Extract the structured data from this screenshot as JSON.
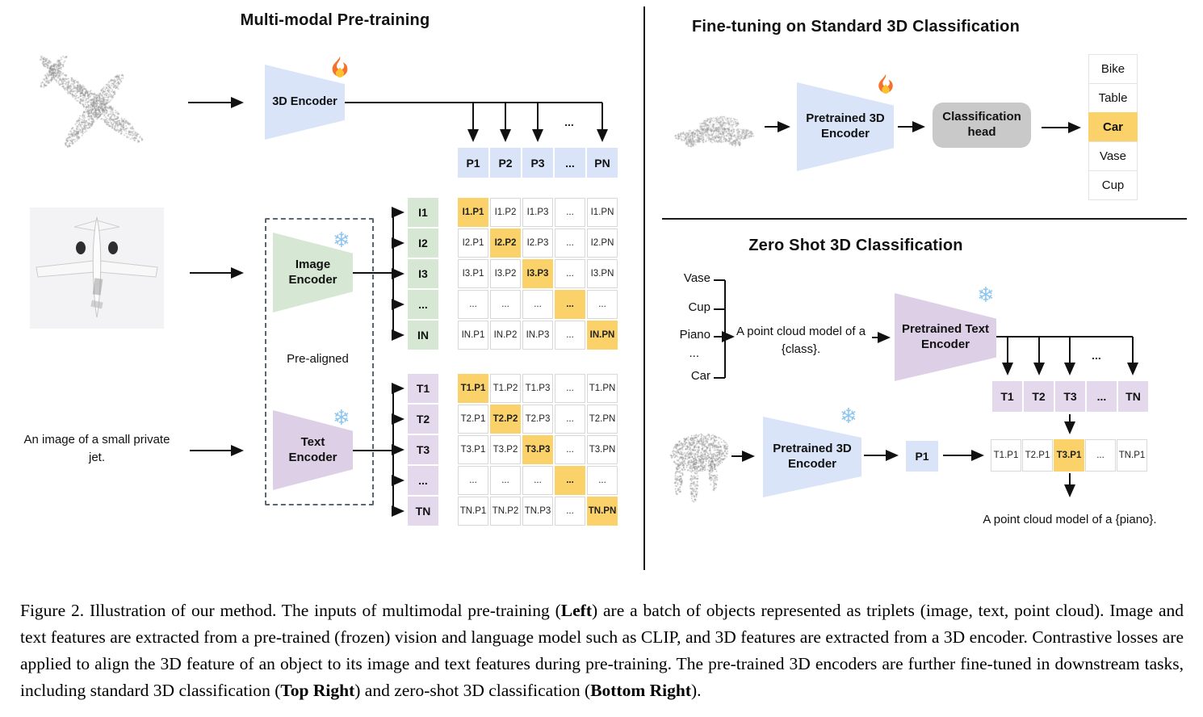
{
  "left": {
    "title": "Multi-modal Pre-training",
    "encoder3d_label": "3D Encoder",
    "image_encoder_label": "Image Encoder",
    "text_encoder_label": "Text Encoder",
    "pre_aligned": "Pre-aligned",
    "input_text": "An image of a small private jet.",
    "ellipsis": "...",
    "p_row": [
      "P1",
      "P2",
      "P3",
      "...",
      "PN"
    ],
    "i_labels": [
      "I1",
      "I2",
      "I3",
      "...",
      "IN"
    ],
    "i_matrix": [
      [
        "I1.P1",
        "I1.P2",
        "I1.P3",
        "...",
        "I1.PN"
      ],
      [
        "I2.P1",
        "I2.P2",
        "I2.P3",
        "...",
        "I2.PN"
      ],
      [
        "I3.P1",
        "I3.P2",
        "I3.P3",
        "...",
        "I3.PN"
      ],
      [
        "...",
        "...",
        "...",
        "...",
        "..."
      ],
      [
        "IN.P1",
        "IN.P2",
        "IN.P3",
        "...",
        "IN.PN"
      ]
    ],
    "t_labels": [
      "T1",
      "T2",
      "T3",
      "...",
      "TN"
    ],
    "t_matrix": [
      [
        "T1.P1",
        "T1.P2",
        "T1.P3",
        "...",
        "T1.PN"
      ],
      [
        "T2.P1",
        "T2.P2",
        "T2.P3",
        "...",
        "T2.PN"
      ],
      [
        "T3.P1",
        "T3.P2",
        "T3.P3",
        "...",
        "T3.PN"
      ],
      [
        "...",
        "...",
        "...",
        "...",
        "..."
      ],
      [
        "TN.P1",
        "TN.P2",
        "TN.P3",
        "...",
        "TN.PN"
      ]
    ],
    "matrix_highlight": "diagonal"
  },
  "top_right": {
    "title": "Fine-tuning on Standard 3D Classification",
    "encoder_label": "Pretrained 3D Encoder",
    "head_label": "Classification head",
    "classes": [
      "Bike",
      "Table",
      "Car",
      "Vase",
      "Cup"
    ],
    "highlight_index": 2
  },
  "bottom_right": {
    "title": "Zero Shot 3D Classification",
    "class_list": [
      "Vase",
      "Cup",
      "Piano",
      "...",
      "Car"
    ],
    "prompt": "A point cloud model of a {class}.",
    "text_encoder_label": "Pretrained Text Encoder",
    "encoder_label": "Pretrained 3D Encoder",
    "p1_label": "P1",
    "t_row": [
      "T1",
      "T2",
      "T3",
      "...",
      "TN"
    ],
    "tp_row": [
      "T1.P1",
      "T2.P1",
      "T3.P1",
      "...",
      "TN.P1"
    ],
    "tp_highlight_index": 2,
    "ellipsis": "...",
    "result_text": "A point cloud model of a {piano}."
  },
  "icons": {
    "flame": "flame-icon",
    "snowflake": "❄"
  },
  "colors": {
    "blue": "#d9e4f8",
    "green": "#d6e8d4",
    "lavender": "#e3d8ec",
    "purple_trap": "#ddcfe6",
    "orange": "#fbd169",
    "head_gray": "#c9c9c9",
    "snowflake_blue": "#8fc6ee"
  },
  "caption": {
    "segments": [
      {
        "text": "Figure 2. Illustration of our method. The inputs of multimodal pre-training (",
        "bold": false
      },
      {
        "text": "Left",
        "bold": true
      },
      {
        "text": ") are a batch of objects represented as triplets (image, text, point cloud). Image and text features are extracted from a pre-trained (frozen) vision and language model such as CLIP, and 3D features are extracted from a 3D encoder. Contrastive losses are applied to align the 3D feature of an object to its image and text features during pre-training. The pre-trained 3D encoders are further fine-tuned in downstream tasks, including standard 3D classification (",
        "bold": false
      },
      {
        "text": "Top Right",
        "bold": true
      },
      {
        "text": ") and zero-shot 3D classification (",
        "bold": false
      },
      {
        "text": "Bottom Right",
        "bold": true
      },
      {
        "text": ").",
        "bold": false
      }
    ]
  }
}
